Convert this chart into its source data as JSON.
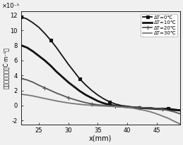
{
  "title": "",
  "xlabel": "x(mm)",
  "ylabel": "空间电荷密度（C·m⁻¹）",
  "ylabel_prefix": "×10⁻¹",
  "xlim": [
    22,
    49
  ],
  "ylim": [
    -2.5,
    12.5
  ],
  "yticks": [
    -2,
    0,
    2,
    4,
    6,
    8,
    10,
    12
  ],
  "xticks": [
    25,
    30,
    35,
    40,
    45
  ],
  "series": [
    {
      "label": "ΔT=0℃",
      "color": "#111111",
      "linewidth": 1.3,
      "marker": "s",
      "markersize": 2.5,
      "markevery": 5,
      "x": [
        22,
        23,
        24,
        25,
        26,
        27,
        28,
        29,
        30,
        31,
        32,
        33,
        34,
        35,
        36,
        37,
        38,
        39,
        40,
        41,
        42,
        43,
        44,
        45,
        46,
        47,
        48,
        49
      ],
      "y": [
        11.8,
        11.5,
        11.0,
        10.4,
        9.6,
        8.7,
        7.7,
        6.6,
        5.5,
        4.5,
        3.5,
        2.7,
        2.0,
        1.4,
        0.9,
        0.5,
        0.2,
        0.0,
        -0.1,
        -0.2,
        -0.3,
        -0.3,
        -0.3,
        -0.4,
        -0.4,
        -0.4,
        -0.5,
        -0.6
      ]
    },
    {
      "label": "ΔT=10℃",
      "color": "#111111",
      "linewidth": 2.0,
      "marker": null,
      "markersize": 0,
      "markevery": 1,
      "x": [
        22,
        23,
        24,
        25,
        26,
        27,
        28,
        29,
        30,
        31,
        32,
        33,
        34,
        35,
        36,
        37,
        38,
        39,
        40,
        41,
        42,
        43,
        44,
        45,
        46,
        47,
        48,
        49
      ],
      "y": [
        8.0,
        7.7,
        7.2,
        6.6,
        6.0,
        5.3,
        4.5,
        3.8,
        3.1,
        2.5,
        1.9,
        1.4,
        1.0,
        0.6,
        0.3,
        0.1,
        -0.05,
        -0.15,
        -0.2,
        -0.25,
        -0.3,
        -0.35,
        -0.4,
        -0.45,
        -0.5,
        -0.55,
        -0.6,
        -0.65
      ]
    },
    {
      "label": "ΔT=20℃",
      "color": "#555555",
      "linewidth": 1.3,
      "marker": "+",
      "markersize": 4,
      "markevery": 4,
      "x": [
        22,
        23,
        24,
        25,
        26,
        27,
        28,
        29,
        30,
        31,
        32,
        33,
        34,
        35,
        36,
        37,
        38,
        39,
        40,
        41,
        42,
        43,
        44,
        45,
        46,
        47,
        48,
        49
      ],
      "y": [
        3.6,
        3.4,
        3.1,
        2.7,
        2.35,
        2.0,
        1.65,
        1.35,
        1.05,
        0.8,
        0.57,
        0.37,
        0.22,
        0.1,
        0.02,
        -0.05,
        -0.1,
        -0.14,
        -0.18,
        -0.22,
        -0.26,
        -0.3,
        -0.34,
        -0.4,
        -0.5,
        -0.65,
        -0.85,
        -1.1
      ]
    },
    {
      "label": "ΔT=30℃",
      "color": "#777777",
      "linewidth": 1.3,
      "marker": null,
      "markersize": 0,
      "markevery": 1,
      "x": [
        22,
        23,
        24,
        25,
        26,
        27,
        28,
        29,
        30,
        31,
        32,
        33,
        34,
        35,
        36,
        37,
        38,
        39,
        40,
        41,
        42,
        43,
        44,
        45,
        46,
        47,
        48,
        49
      ],
      "y": [
        1.5,
        1.4,
        1.27,
        1.1,
        0.93,
        0.77,
        0.61,
        0.47,
        0.34,
        0.24,
        0.15,
        0.08,
        0.02,
        -0.03,
        -0.07,
        -0.11,
        -0.15,
        -0.2,
        -0.27,
        -0.36,
        -0.5,
        -0.65,
        -0.85,
        -1.1,
        -1.4,
        -1.7,
        -2.1,
        -2.45
      ]
    }
  ],
  "background_color": "#f0f0f0",
  "legend_loc": "upper right",
  "figsize": [
    2.59,
    2.06
  ],
  "dpi": 100
}
